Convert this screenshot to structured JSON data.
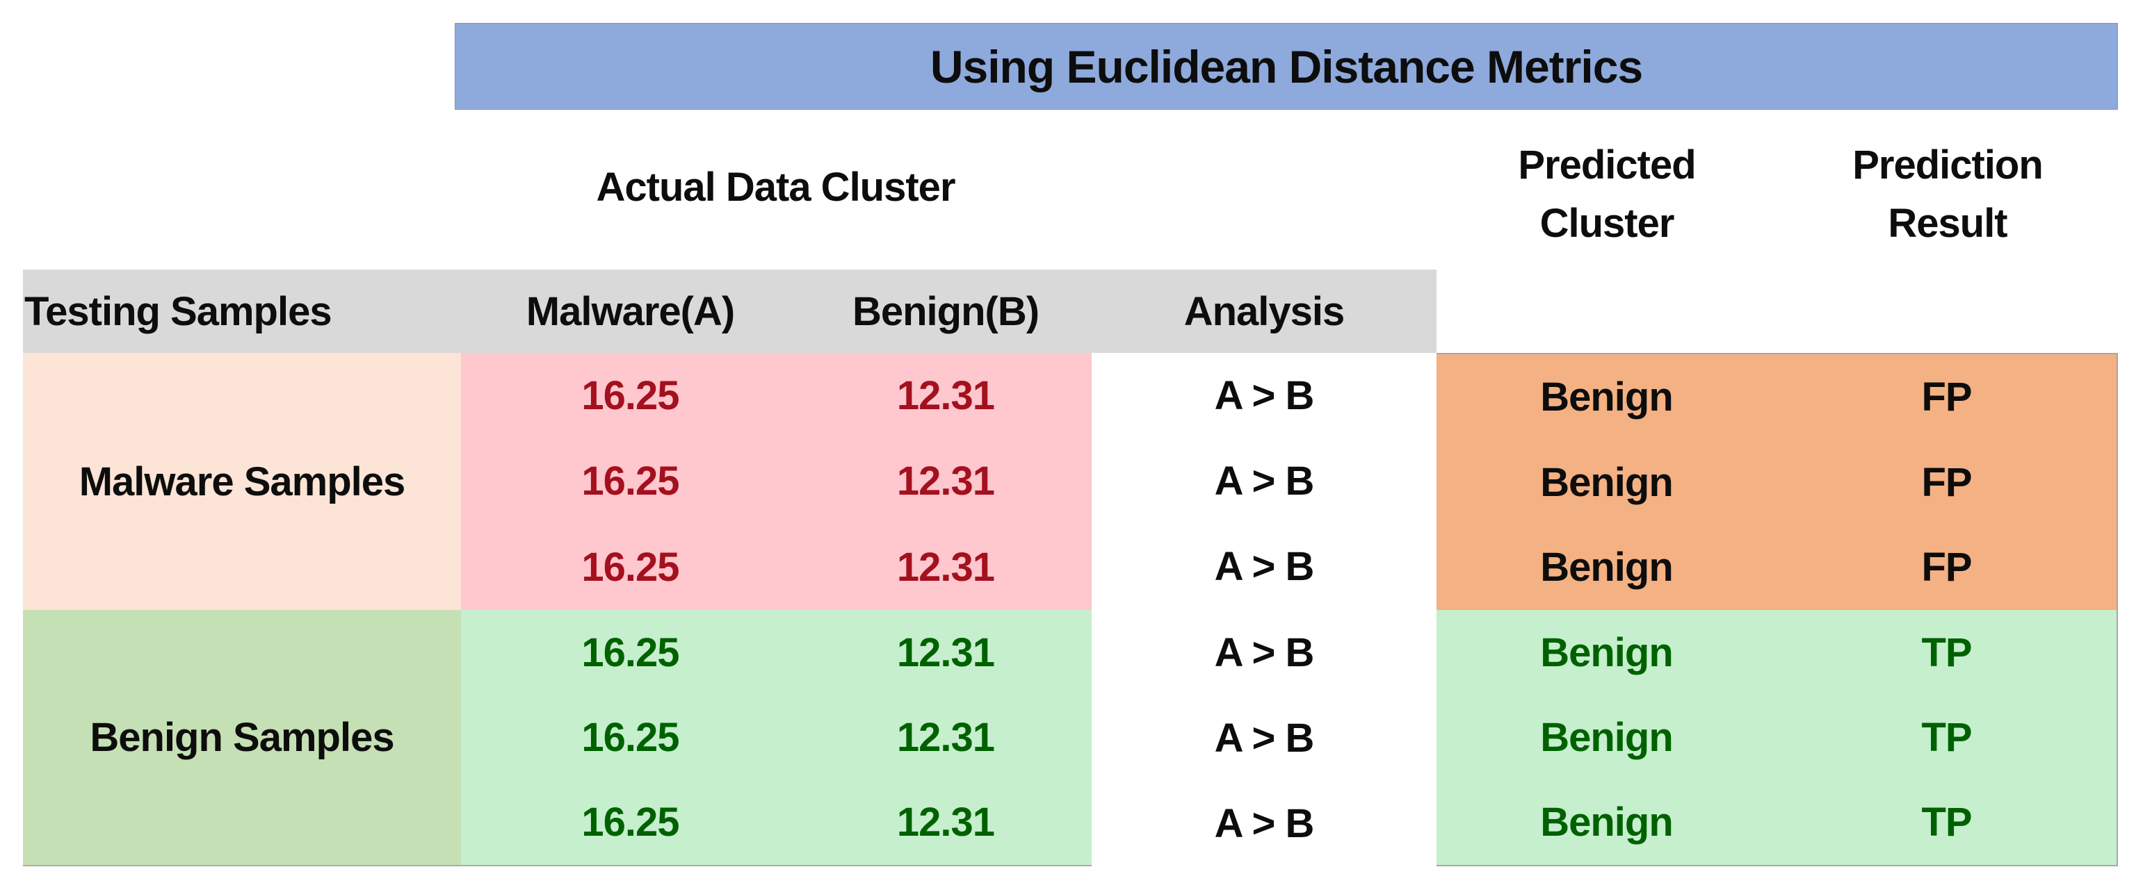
{
  "title_banner": {
    "label": "Using Euclidean Distance Metrics"
  },
  "group_headers": {
    "actual": "Actual Data Cluster",
    "predicted_line1": "Predicted",
    "predicted_line2": "Cluster",
    "result_line1": "Prediction",
    "result_line2": "Result"
  },
  "column_headers": {
    "testing": "Testing Samples",
    "malware_a": "Malware(A)",
    "benign_b": "Benign(B)",
    "analysis": "Analysis"
  },
  "malware_group": {
    "label": "Malware Samples",
    "rows": [
      {
        "a": "16.25",
        "b": "12.31",
        "analysis": "A > B",
        "predicted": "Benign",
        "result": "FP"
      },
      {
        "a": "16.25",
        "b": "12.31",
        "analysis": "A > B",
        "predicted": "Benign",
        "result": "FP"
      },
      {
        "a": "16.25",
        "b": "12.31",
        "analysis": "A > B",
        "predicted": "Benign",
        "result": "FP"
      }
    ]
  },
  "benign_group": {
    "label": "Benign Samples",
    "rows": [
      {
        "a": "16.25",
        "b": "12.31",
        "analysis": "A > B",
        "predicted": "Benign",
        "result": "TP"
      },
      {
        "a": "16.25",
        "b": "12.31",
        "analysis": "A > B",
        "predicted": "Benign",
        "result": "TP"
      },
      {
        "a": "16.25",
        "b": "12.31",
        "analysis": "A > B",
        "predicted": "Benign",
        "result": "TP"
      }
    ]
  },
  "colors": {
    "banner_blue": "#8EA9DB",
    "header_gray": "#D9D9D9",
    "malware_label_peach": "#FCE4D6",
    "malware_value_pink": "#FFC7CE",
    "malware_value_text_red": "#A3101E",
    "benign_label_olive": "#C5E0B4",
    "benign_value_mint": "#C6EFCE",
    "benign_value_text_green": "#006100",
    "fp_panel_orange": "#F4B183",
    "border_gray": "#A6A6A6"
  },
  "chart_data": {
    "type": "table",
    "title": "Using Euclidean Distance Metrics",
    "column_groups": [
      "Actual Data Cluster",
      "Predicted Cluster",
      "Prediction Result"
    ],
    "columns": [
      "Testing Samples",
      "Malware(A)",
      "Benign(B)",
      "Analysis",
      "Predicted Cluster",
      "Prediction Result"
    ],
    "rows": [
      [
        "Malware Samples",
        16.25,
        12.31,
        "A > B",
        "Benign",
        "FP"
      ],
      [
        "Malware Samples",
        16.25,
        12.31,
        "A > B",
        "Benign",
        "FP"
      ],
      [
        "Malware Samples",
        16.25,
        12.31,
        "A > B",
        "Benign",
        "FP"
      ],
      [
        "Benign Samples",
        16.25,
        12.31,
        "A > B",
        "Benign",
        "TP"
      ],
      [
        "Benign Samples",
        16.25,
        12.31,
        "A > B",
        "Benign",
        "TP"
      ],
      [
        "Benign Samples",
        16.25,
        12.31,
        "A > B",
        "Benign",
        "TP"
      ]
    ]
  }
}
